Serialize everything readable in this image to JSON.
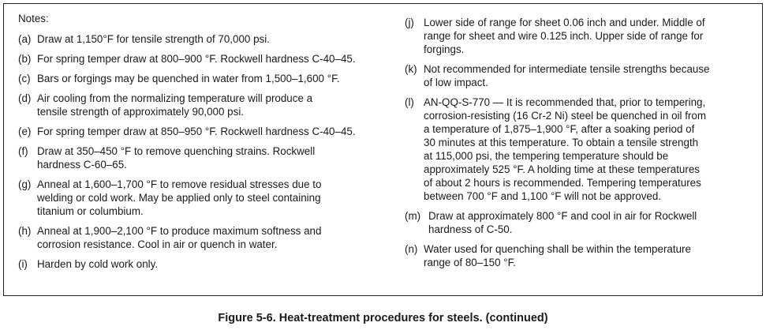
{
  "notes_heading": "Notes:",
  "left_notes": [
    {
      "label": "(a)",
      "lines": [
        "Draw at 1,150°F for tensile strength of 70,000 psi."
      ]
    },
    {
      "label": "(b)",
      "lines": [
        "For spring temper draw at 800–900 °F. Rockwell hardness C-40–45."
      ]
    },
    {
      "label": "(c)",
      "lines": [
        "Bars or forgings may be quenched in water from 1,500–1,600 °F."
      ]
    },
    {
      "label": "(d)",
      "lines": [
        "Air cooling from the normalizing temperature will produce a",
        "tensile strength of approximately 90,000 psi."
      ]
    },
    {
      "label": "(e)",
      "lines": [
        "For spring temper draw at 850–950 °F. Rockwell hardness C-40–45."
      ]
    },
    {
      "label": "(f)",
      "lines": [
        "Draw at 350–450 °F to remove quenching strains. Rockwell",
        "hardness C-60–65."
      ]
    },
    {
      "label": "(g)",
      "lines": [
        "Anneal at 1,600–1,700 °F to remove residual stresses due to",
        "welding or cold work. May be applied only to steel containing",
        "titanium or columbium."
      ]
    },
    {
      "label": "(h)",
      "lines": [
        "Anneal at 1,900–2,100 °F to produce maximum softness and",
        "corrosion resistance. Cool in air or quench in water."
      ]
    },
    {
      "label": "(i)",
      "lines": [
        "Harden by cold work only."
      ]
    }
  ],
  "right_notes": [
    {
      "label": "(j)",
      "lines": [
        "Lower side of range for sheet 0.06 inch and under. Middle of",
        "range for sheet and wire 0.125 inch. Upper side of range for",
        "forgings."
      ]
    },
    {
      "label": "(k)",
      "lines": [
        "Not recommended for intermediate tensile strengths because",
        "of low impact."
      ]
    },
    {
      "label": "(l)",
      "lines": [
        "AN-QQ-S-770 — It is recommended that, prior to tempering,",
        "corrosion-resisting (16 Cr-2 Ni) steel be quenched in oil from",
        "a temperature of 1,875–1,900 °F, after a soaking period of",
        "30 minutes at this temperature. To obtain a tensile strength",
        "at 115,000 psi, the tempering temperature should be",
        "approximately 525 °F. A holding time at these temperatures",
        "of about 2 hours is recommended. Tempering temperatures",
        "between 700 °F and 1,100 °F will not be approved."
      ]
    },
    {
      "label": "(m)",
      "lines": [
        "Draw at approximately 800 °F and cool in air for Rockwell",
        "hardness of C-50."
      ]
    },
    {
      "label": "(n)",
      "lines": [
        "Water used  for quenching shall be within the temperature",
        "range of 80–150 °F."
      ]
    }
  ],
  "caption": "Figure 5-6. Heat-treatment procedures for steels. (continued)"
}
